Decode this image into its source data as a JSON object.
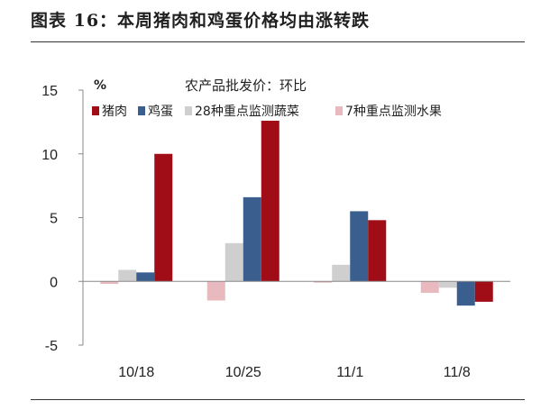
{
  "figure_title": "图表 16：本周猪肉和鸡蛋价格均由涨转跌",
  "chart_data": {
    "type": "bar",
    "title": "农产品批发价：环比",
    "ylabel": "%",
    "xlabel": "",
    "ylim": [
      -5,
      15
    ],
    "yticks": [
      15,
      10,
      5,
      0,
      -5
    ],
    "categories": [
      "10/18",
      "10/25",
      "11/1",
      "11/8"
    ],
    "legend_position": "top",
    "grid": false,
    "series": [
      {
        "name": "7种重点监测水果",
        "color": "#e8b9bf",
        "values": [
          -0.2,
          -1.5,
          -0.1,
          -0.9
        ]
      },
      {
        "name": "28种重点监测蔬菜",
        "color": "#cfcfcf",
        "values": [
          0.9,
          3.0,
          1.3,
          -0.5
        ]
      },
      {
        "name": "鸡蛋",
        "color": "#3a5f8f",
        "values": [
          0.7,
          6.6,
          5.5,
          -1.9
        ]
      },
      {
        "name": "猪肉",
        "color": "#a10d16",
        "values": [
          10.0,
          12.6,
          4.8,
          -1.6
        ]
      }
    ],
    "legend_order": [
      "猪肉",
      "鸡蛋",
      "28种重点监测蔬菜",
      "7种重点监测水果"
    ]
  }
}
